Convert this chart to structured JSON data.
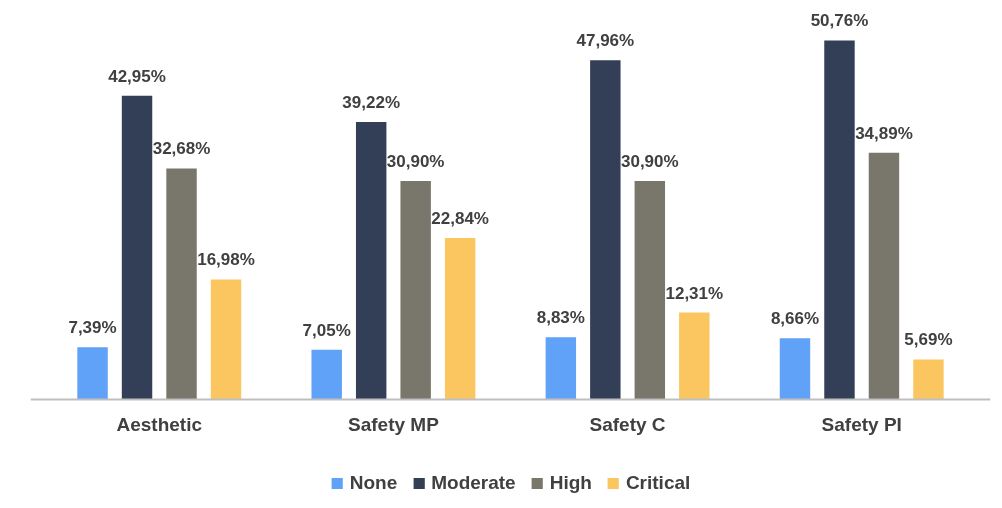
{
  "chart_data": {
    "type": "bar",
    "categories": [
      "Aesthetic",
      "Safety MP",
      "Safety C",
      "Safety PI"
    ],
    "series": [
      {
        "name": "None",
        "color": "#5fa2f7",
        "values": [
          7.39,
          7.05,
          8.83,
          8.66
        ],
        "value_labels": [
          "7,39%",
          "7,05%",
          "8,83%",
          "8,66%"
        ]
      },
      {
        "name": "Moderate",
        "color": "#323f56",
        "values": [
          42.95,
          39.22,
          47.96,
          50.76
        ],
        "value_labels": [
          "42,95%",
          "39,22%",
          "47,96%",
          "50,76%"
        ]
      },
      {
        "name": "High",
        "color": "#79776b",
        "values": [
          32.68,
          30.9,
          30.9,
          34.89
        ],
        "value_labels": [
          "32,68%",
          "30,90%",
          "30,90%",
          "34,89%"
        ]
      },
      {
        "name": "Critical",
        "color": "#fbc660",
        "values": [
          16.98,
          22.84,
          12.31,
          5.69
        ],
        "value_labels": [
          "16,98%",
          "22,84%",
          "12,31%",
          "5,69%"
        ]
      }
    ],
    "legend": "bottom",
    "grid": false
  }
}
